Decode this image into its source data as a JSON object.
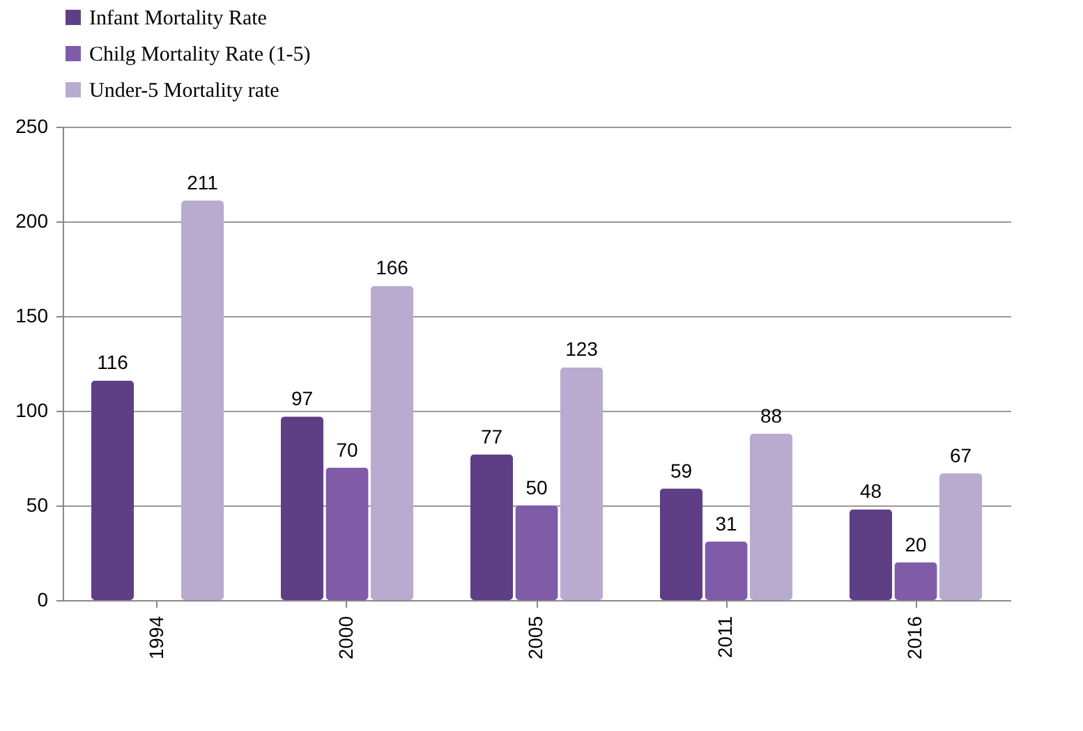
{
  "chart_data": {
    "type": "bar",
    "categories": [
      "1994",
      "2000",
      "2005",
      "2011",
      "2016"
    ],
    "series": [
      {
        "name": "Infant Mortality Rate",
        "color": "#5e3f86",
        "values": [
          116,
          97,
          77,
          59,
          48
        ]
      },
      {
        "name": "Chilg Mortality Rate (1-5)",
        "color": "#7f5ba8",
        "values": [
          null,
          70,
          50,
          31,
          20
        ]
      },
      {
        "name": "Under-5 Mortality rate",
        "color": "#b8abcf",
        "values": [
          211,
          166,
          123,
          88,
          67
        ]
      }
    ],
    "ylim": [
      0,
      250
    ],
    "yticks": [
      0,
      50,
      100,
      150,
      200,
      250
    ],
    "grid": "y",
    "legend": "top",
    "data_labels": true
  }
}
